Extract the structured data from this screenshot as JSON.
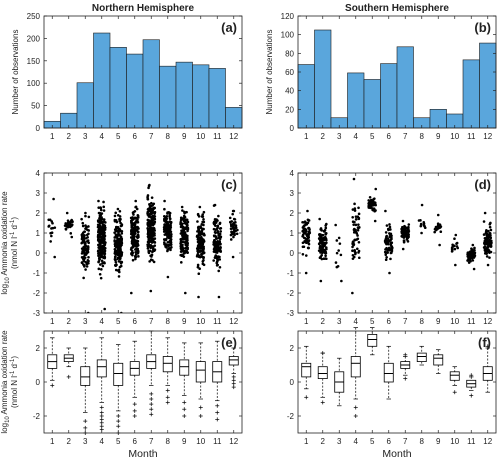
{
  "chart_data": [
    {
      "panel": "a",
      "type": "bar",
      "title": "Northern Hemisphere",
      "panel_label": "(a)",
      "ylabel": "Number of observations",
      "xlabel": "",
      "categories": [
        "1",
        "2",
        "3",
        "4",
        "5",
        "6",
        "7",
        "8",
        "9",
        "10",
        "11",
        "12"
      ],
      "values": [
        15,
        33,
        101,
        212,
        180,
        165,
        197,
        138,
        147,
        141,
        133,
        46
      ],
      "ylim": [
        0,
        250
      ],
      "yticks": [
        "0",
        "50",
        "100",
        "150",
        "200",
        "250"
      ],
      "color": "#5aa6dc",
      "grid": false
    },
    {
      "panel": "b",
      "type": "bar",
      "title": "Southern Hemisphere",
      "panel_label": "(b)",
      "ylabel": "Number of observations",
      "xlabel": "",
      "categories": [
        "1",
        "2",
        "3",
        "4",
        "5",
        "6",
        "7",
        "8",
        "9",
        "10",
        "11",
        "12"
      ],
      "values": [
        68,
        105,
        11,
        59,
        52,
        69,
        87,
        11,
        20,
        15,
        73,
        91
      ],
      "ylim": [
        0,
        120
      ],
      "yticks": [
        "0",
        "20",
        "40",
        "60",
        "80",
        "100",
        "120"
      ],
      "color": "#5aa6dc",
      "grid": false
    },
    {
      "panel": "c",
      "type": "scatter",
      "panel_label": "(c)",
      "ylabel_line1": "log10 Ammonia oxidation rate",
      "ylabel_line2": "(nmol N l-1 d-1)",
      "xlabel": "",
      "categories": [
        "1",
        "2",
        "3",
        "4",
        "5",
        "6",
        "7",
        "8",
        "9",
        "10",
        "11",
        "12"
      ],
      "ylim": [
        -3,
        4
      ],
      "yticks": [
        "-3",
        "-2",
        "-1",
        "0",
        "1",
        "2",
        "3",
        "4"
      ],
      "series": [
        {
          "month": 1,
          "count": 15,
          "min": -0.2,
          "max": 2.7,
          "center": 1.2
        },
        {
          "month": 2,
          "count": 33,
          "min": 0.8,
          "max": 2.0,
          "center": 1.4
        },
        {
          "month": 3,
          "count": 101,
          "min": -3.0,
          "max": 2.0,
          "center": 0.3
        },
        {
          "month": 4,
          "count": 212,
          "min": -2.8,
          "max": 2.6,
          "center": 0.8
        },
        {
          "month": 5,
          "count": 180,
          "min": -3.0,
          "max": 2.2,
          "center": 0.4
        },
        {
          "month": 6,
          "count": 165,
          "min": -2.0,
          "max": 2.6,
          "center": 0.9
        },
        {
          "month": 7,
          "count": 197,
          "min": -1.9,
          "max": 3.4,
          "center": 1.3
        },
        {
          "month": 8,
          "count": 138,
          "min": -1.2,
          "max": 2.6,
          "center": 1.1
        },
        {
          "month": 9,
          "count": 147,
          "min": -2.0,
          "max": 2.3,
          "center": 0.9
        },
        {
          "month": 10,
          "count": 141,
          "min": -2.2,
          "max": 2.3,
          "center": 0.6
        },
        {
          "month": 11,
          "count": 133,
          "min": -2.2,
          "max": 2.4,
          "center": 0.6
        },
        {
          "month": 12,
          "count": 46,
          "min": -0.2,
          "max": 2.1,
          "center": 1.2
        }
      ]
    },
    {
      "panel": "d",
      "type": "scatter",
      "panel_label": "(d)",
      "xlabel": "",
      "categories": [
        "1",
        "2",
        "3",
        "4",
        "5",
        "6",
        "7",
        "8",
        "9",
        "10",
        "11",
        "12"
      ],
      "ylim": [
        -3,
        4
      ],
      "yticks": [
        "-3",
        "-2",
        "-1",
        "0",
        "1",
        "2",
        "3",
        "4"
      ],
      "series": [
        {
          "month": 1,
          "count": 68,
          "min": -1.0,
          "max": 2.1,
          "center": 0.9
        },
        {
          "month": 2,
          "count": 105,
          "min": -1.4,
          "max": 1.7,
          "center": 0.5
        },
        {
          "month": 3,
          "count": 11,
          "min": -1.4,
          "max": 1.4,
          "center": 0.0
        },
        {
          "month": 4,
          "count": 59,
          "min": -2.0,
          "max": 3.7,
          "center": 1.0
        },
        {
          "month": 5,
          "count": 52,
          "min": 1.6,
          "max": 3.2,
          "center": 2.4
        },
        {
          "month": 6,
          "count": 69,
          "min": -1.0,
          "max": 2.1,
          "center": 0.5
        },
        {
          "month": 7,
          "count": 87,
          "min": 0.2,
          "max": 1.6,
          "center": 1.0
        },
        {
          "month": 8,
          "count": 11,
          "min": 1.0,
          "max": 2.4,
          "center": 1.4
        },
        {
          "month": 9,
          "count": 20,
          "min": 0.4,
          "max": 1.9,
          "center": 1.3
        },
        {
          "month": 10,
          "count": 15,
          "min": -0.6,
          "max": 0.9,
          "center": 0.4
        },
        {
          "month": 11,
          "count": 73,
          "min": -0.8,
          "max": 0.4,
          "center": -0.1
        },
        {
          "month": 12,
          "count": 91,
          "min": -0.6,
          "max": 2.0,
          "center": 0.6
        }
      ]
    },
    {
      "panel": "e",
      "type": "box",
      "panel_label": "(e)",
      "ylabel_line1": "log10 Ammonia oxidation rate",
      "ylabel_line2": "(nmol N l-1 d-1)",
      "xlabel": "Month",
      "categories": [
        "1",
        "2",
        "3",
        "4",
        "5",
        "6",
        "7",
        "8",
        "9",
        "10",
        "11",
        "12"
      ],
      "ylim": [
        -3,
        3
      ],
      "yticks": [
        "-2",
        "0",
        "2"
      ],
      "boxes": [
        {
          "month": 1,
          "wlo": 0.1,
          "q1": 0.8,
          "med": 1.2,
          "q3": 1.6,
          "whi": 2.6,
          "outliers": [
            -0.2
          ]
        },
        {
          "month": 2,
          "wlo": 0.9,
          "q1": 1.2,
          "med": 1.4,
          "q3": 1.6,
          "whi": 2.0,
          "outliers": [
            0.3
          ]
        },
        {
          "month": 3,
          "wlo": -1.8,
          "q1": -0.2,
          "med": 0.3,
          "q3": 0.9,
          "whi": 2.0,
          "outliers": [
            -2.3,
            -2.7,
            -3.0
          ]
        },
        {
          "month": 4,
          "wlo": -1.2,
          "q1": 0.3,
          "med": 0.9,
          "q3": 1.3,
          "whi": 2.6,
          "outliers": [
            -1.5,
            -1.8,
            -2.0,
            -2.2,
            -2.4,
            -2.6,
            -2.8
          ]
        },
        {
          "month": 5,
          "wlo": -1.7,
          "q1": -0.2,
          "med": 0.5,
          "q3": 1.1,
          "whi": 2.2,
          "outliers": [
            -2.0,
            -2.3,
            -2.6,
            -3.0
          ]
        },
        {
          "month": 6,
          "wlo": -0.9,
          "q1": 0.4,
          "med": 0.8,
          "q3": 1.2,
          "whi": 2.4,
          "outliers": [
            -1.3,
            -1.7,
            -2.0
          ]
        },
        {
          "month": 7,
          "wlo": -0.2,
          "q1": 0.8,
          "med": 1.2,
          "q3": 1.6,
          "whi": 3.0,
          "outliers": [
            -0.7,
            -1.0,
            -1.3,
            -1.6,
            -1.9
          ]
        },
        {
          "month": 8,
          "wlo": -0.2,
          "q1": 0.6,
          "med": 1.1,
          "q3": 1.5,
          "whi": 2.6,
          "outliers": [
            -0.5,
            -0.9,
            -1.2
          ]
        },
        {
          "month": 9,
          "wlo": -0.8,
          "q1": 0.4,
          "med": 0.9,
          "q3": 1.3,
          "whi": 2.3,
          "outliers": [
            -1.2,
            -1.6,
            -2.0
          ]
        },
        {
          "month": 10,
          "wlo": -1.0,
          "q1": 0.0,
          "med": 0.7,
          "q3": 1.2,
          "whi": 2.3,
          "outliers": [
            -1.5,
            -2.0
          ]
        },
        {
          "month": 11,
          "wlo": -1.1,
          "q1": 0.0,
          "med": 0.6,
          "q3": 1.2,
          "whi": 2.4,
          "outliers": [
            -1.4,
            -1.8,
            -2.2
          ]
        },
        {
          "month": 12,
          "wlo": 0.5,
          "q1": 1.0,
          "med": 1.3,
          "q3": 1.5,
          "whi": 2.0,
          "outliers": [
            0.3,
            0.1,
            -0.1,
            -0.3
          ]
        }
      ]
    },
    {
      "panel": "f",
      "type": "box",
      "panel_label": "(f)",
      "xlabel": "Month",
      "categories": [
        "1",
        "2",
        "3",
        "4",
        "5",
        "6",
        "7",
        "8",
        "9",
        "10",
        "11",
        "12"
      ],
      "ylim": [
        -3,
        3
      ],
      "yticks": [
        "-2",
        "0",
        "2"
      ],
      "boxes": [
        {
          "month": 1,
          "wlo": -0.4,
          "q1": 0.3,
          "med": 0.9,
          "q3": 1.1,
          "whi": 2.1,
          "outliers": [
            -0.9
          ]
        },
        {
          "month": 2,
          "wlo": -0.9,
          "q1": 0.2,
          "med": 0.5,
          "q3": 0.9,
          "whi": 1.7,
          "outliers": [
            -1.2,
            1.7
          ]
        },
        {
          "month": 3,
          "wlo": -1.4,
          "q1": -0.6,
          "med": 0.0,
          "q3": 0.6,
          "whi": 1.4,
          "outliers": []
        },
        {
          "month": 4,
          "wlo": -1.0,
          "q1": 0.3,
          "med": 1.1,
          "q3": 1.5,
          "whi": 3.2,
          "outliers": [
            -1.5,
            -2.0
          ]
        },
        {
          "month": 5,
          "wlo": 1.6,
          "q1": 2.1,
          "med": 2.5,
          "q3": 2.8,
          "whi": 3.2,
          "outliers": []
        },
        {
          "month": 6,
          "wlo": -1.0,
          "q1": 0.0,
          "med": 0.5,
          "q3": 1.1,
          "whi": 2.1,
          "outliers": []
        },
        {
          "month": 7,
          "wlo": 0.4,
          "q1": 0.8,
          "med": 1.0,
          "q3": 1.2,
          "whi": 1.5,
          "outliers": [
            0.2,
            1.6
          ]
        },
        {
          "month": 8,
          "wlo": 1.0,
          "q1": 1.2,
          "med": 1.5,
          "q3": 1.7,
          "whi": 2.1,
          "outliers": []
        },
        {
          "month": 9,
          "wlo": 0.5,
          "q1": 1.0,
          "med": 1.4,
          "q3": 1.6,
          "whi": 1.9,
          "outliers": []
        },
        {
          "month": 10,
          "wlo": -0.2,
          "q1": 0.1,
          "med": 0.4,
          "q3": 0.6,
          "whi": 0.9,
          "outliers": [
            -0.6
          ]
        },
        {
          "month": 11,
          "wlo": -0.5,
          "q1": -0.3,
          "med": -0.1,
          "q3": 0.1,
          "whi": 0.3,
          "outliers": [
            -0.8,
            0.4
          ]
        },
        {
          "month": 12,
          "wlo": -0.6,
          "q1": 0.1,
          "med": 0.5,
          "q3": 0.9,
          "whi": 2.0,
          "outliers": [
            2.1
          ]
        }
      ]
    }
  ]
}
